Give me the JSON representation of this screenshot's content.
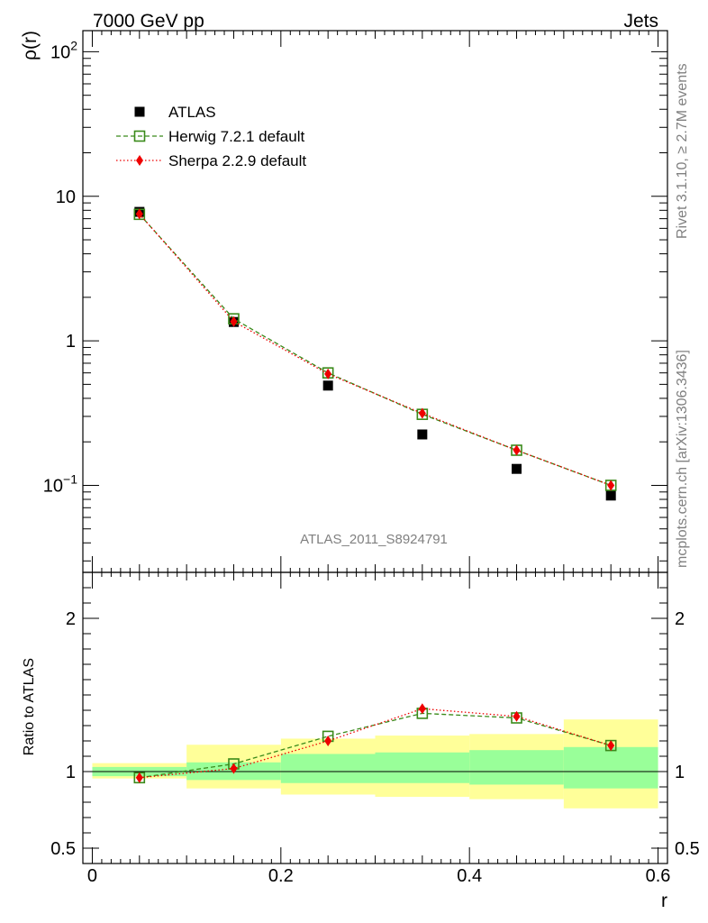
{
  "header": {
    "left_title": "7000 GeV pp",
    "right_title": "Jets"
  },
  "side_texts": {
    "rivet": "Rivet 3.1.10, ≥ 2.7M events",
    "mcplots": "mcplots.cern.ch [arXiv:1306.3436]"
  },
  "analysis_label": "ATLAS_2011_S8924791",
  "chart_data": [
    {
      "id": "main",
      "type": "scatter",
      "ylabel": "ρ(r)",
      "yscale": "log",
      "ylim": [
        0.025,
        140
      ],
      "xlim": [
        -0.01,
        0.61
      ],
      "y_ticks": [
        {
          "value": 0.1,
          "base": "10",
          "exp": "−1"
        },
        {
          "value": 1,
          "text": "1"
        },
        {
          "value": 10,
          "text": "10"
        },
        {
          "value": 100,
          "base": "10",
          "exp": "2"
        }
      ],
      "legend_position": "top-left",
      "x": [
        0.05,
        0.15,
        0.25,
        0.35,
        0.45,
        0.55
      ],
      "series": [
        {
          "name": "ATLAS",
          "color": "#000000",
          "marker": "filled-square",
          "line": "none",
          "values": [
            7.8,
            1.35,
            0.49,
            0.225,
            0.13,
            0.085
          ]
        },
        {
          "name": "Herwig 7.2.1 default",
          "color": "#3a8a1a",
          "marker": "open-square",
          "line": "dashed",
          "values": [
            7.5,
            1.42,
            0.6,
            0.31,
            0.175,
            0.1
          ]
        },
        {
          "name": "Sherpa 2.2.9 default",
          "color": "#ee0000",
          "marker": "diamond",
          "line": "dotted",
          "values": [
            7.55,
            1.36,
            0.59,
            0.315,
            0.175,
            0.1
          ]
        }
      ]
    },
    {
      "id": "ratio",
      "type": "line",
      "ylabel": "Ratio to ATLAS",
      "ylim": [
        0.4,
        2.3
      ],
      "xlim": [
        -0.01,
        0.61
      ],
      "xlabel": "r",
      "y_ticks": [
        {
          "value": 0.5,
          "text": "0.5"
        },
        {
          "value": 1,
          "text": "1"
        },
        {
          "value": 2,
          "text": "2"
        }
      ],
      "x_ticks": [
        {
          "value": 0,
          "text": "0"
        },
        {
          "value": 0.2,
          "text": "0.2"
        },
        {
          "value": 0.4,
          "text": "0.4"
        },
        {
          "value": 0.6,
          "text": "0.6"
        }
      ],
      "bins": [
        [
          0.0,
          0.1
        ],
        [
          0.1,
          0.2
        ],
        [
          0.2,
          0.3
        ],
        [
          0.3,
          0.4
        ],
        [
          0.4,
          0.5
        ],
        [
          0.5,
          0.6
        ]
      ],
      "band_stat": [
        [
          0.97,
          1.03
        ],
        [
          0.945,
          1.06
        ],
        [
          0.925,
          1.115
        ],
        [
          0.925,
          1.125
        ],
        [
          0.915,
          1.14
        ],
        [
          0.89,
          1.16
        ]
      ],
      "band_total": [
        [
          0.955,
          1.055
        ],
        [
          0.89,
          1.175
        ],
        [
          0.85,
          1.215
        ],
        [
          0.835,
          1.235
        ],
        [
          0.82,
          1.245
        ],
        [
          0.76,
          1.34
        ]
      ],
      "x": [
        0.05,
        0.15,
        0.25,
        0.35,
        0.45,
        0.55
      ],
      "series": [
        {
          "name": "Herwig 7.2.1 default",
          "color": "#3a8a1a",
          "marker": "open-square",
          "line": "dashed",
          "values": [
            0.96,
            1.05,
            1.23,
            1.38,
            1.35,
            1.17
          ]
        },
        {
          "name": "Sherpa 2.2.9 default",
          "color": "#ee0000",
          "marker": "diamond",
          "line": "dotted",
          "values": [
            0.96,
            1.02,
            1.2,
            1.41,
            1.36,
            1.17
          ]
        }
      ],
      "reference_line": 1
    }
  ],
  "colors": {
    "band_total": "#ffff99",
    "band_stat": "#99ff99",
    "herwig": "#3a8a1a",
    "sherpa": "#ee0000",
    "data": "#000000"
  }
}
